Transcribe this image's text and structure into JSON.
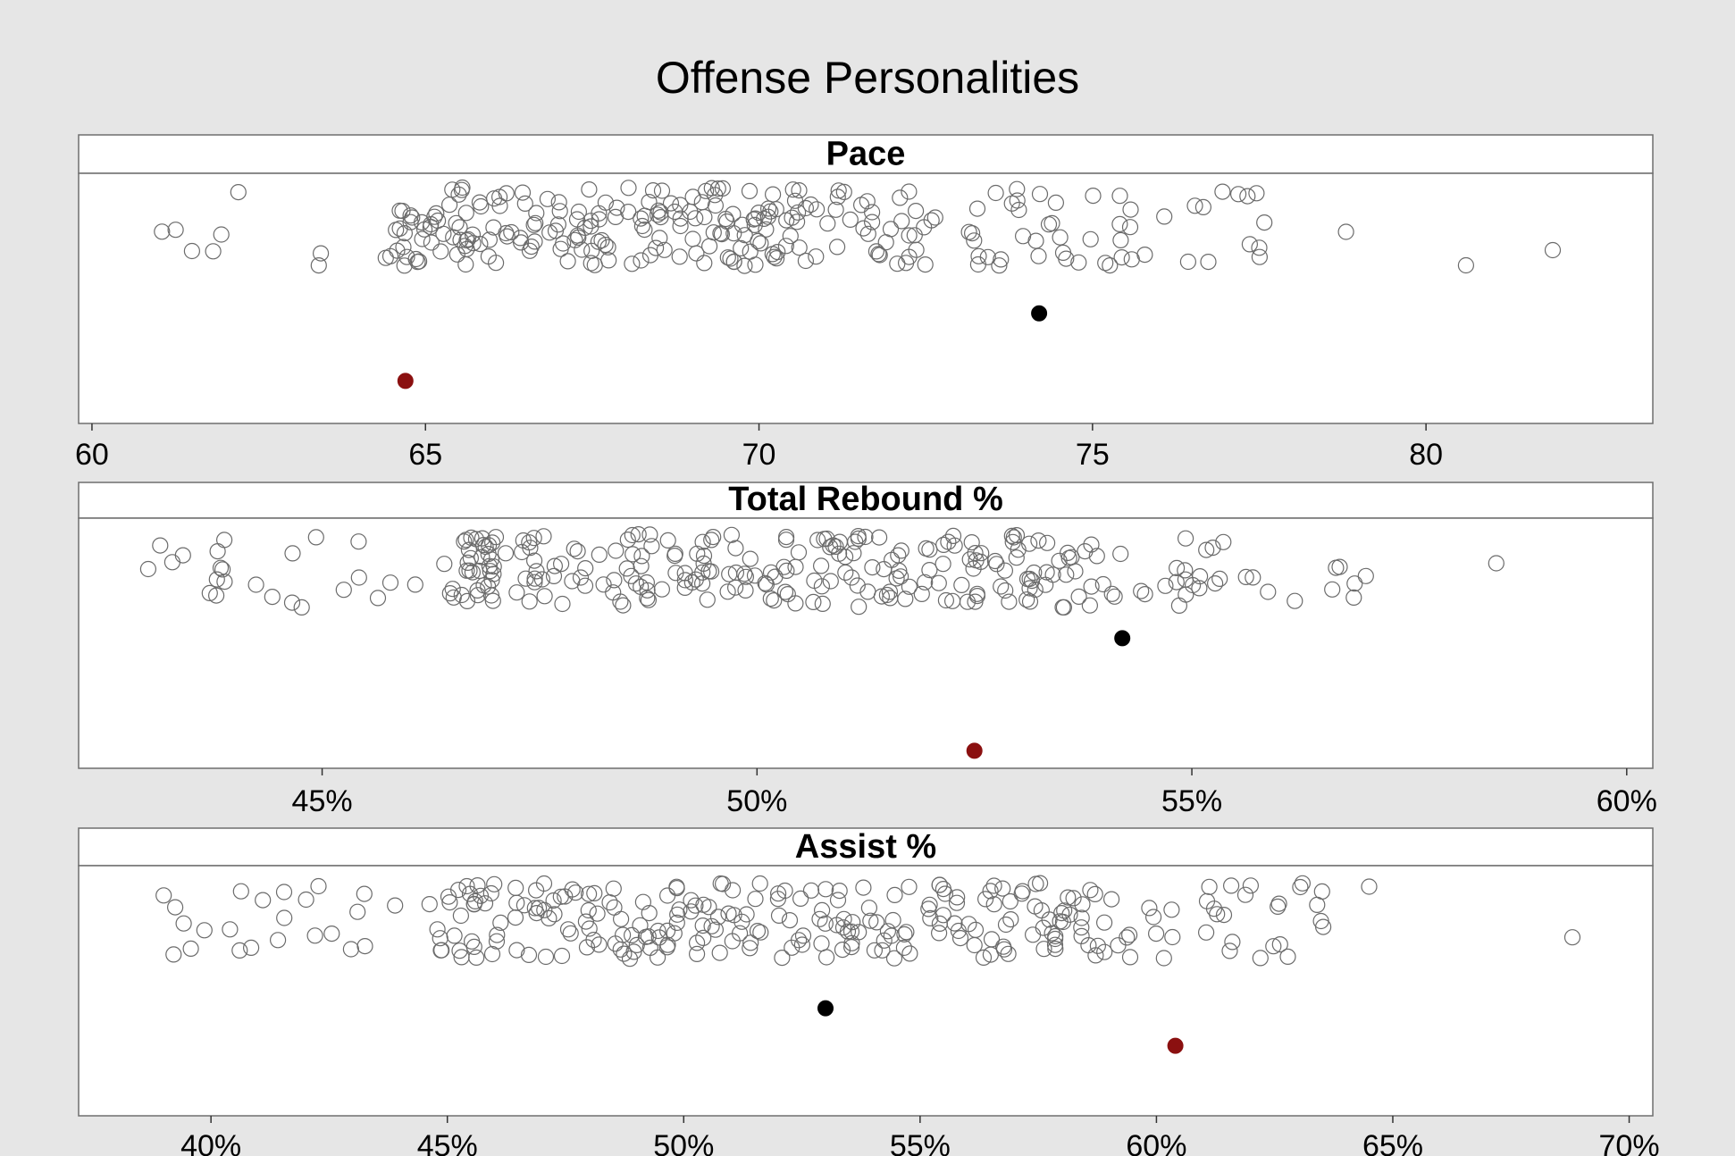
{
  "chart_data": {
    "type": "scatter",
    "title": "Offense Personalities",
    "colors": {
      "background": "#e6e6e6",
      "panel": "#ffffff",
      "points_outline": "#6b6b6b",
      "highlight_black": "#000000",
      "highlight_red": "#8b1010"
    },
    "panels": [
      {
        "id": "pace",
        "title": "Pace",
        "xlim": [
          59.8,
          83.4
        ],
        "ticks": [
          60,
          65,
          70,
          75,
          80
        ],
        "tick_labels": [
          "60",
          "65",
          "70",
          "75",
          "80"
        ],
        "seed": 11,
        "distribution": [
          {
            "range": [
              61.0,
              64.4
            ],
            "count": 5
          },
          {
            "range": [
              64.4,
              72.4
            ],
            "count": 220
          },
          {
            "range": [
              72.4,
              75.6
            ],
            "count": 40
          },
          {
            "range": [
              75.6,
              77.6
            ],
            "count": 12
          }
        ],
        "extra_points": [
          61.05,
          61.5,
          63.4,
          78.8,
          80.6,
          81.9,
          77.5,
          76.95
        ],
        "highlight": [
          {
            "x": 74.2,
            "color": "#000000",
            "level": 0.56
          },
          {
            "x": 64.7,
            "color": "#8b1010",
            "level": 0.83
          }
        ]
      },
      {
        "id": "rebound",
        "title": "Total Rebound %",
        "xlim": [
          42.2,
          60.3
        ],
        "ticks": [
          45,
          50,
          55,
          60
        ],
        "tick_labels": [
          "45%",
          "50%",
          "55%",
          "60%"
        ],
        "seed": 23,
        "distribution": [
          {
            "range": [
              43.0,
              46.4
            ],
            "count": 22
          },
          {
            "range": [
              46.4,
              53.6
            ],
            "count": 230
          },
          {
            "range": [
              53.6,
              55.6
            ],
            "count": 30
          },
          {
            "range": [
              55.6,
              57.2
            ],
            "count": 8
          }
        ],
        "extra_points": [
          43.0,
          43.4,
          58.5,
          57.0,
          56.7
        ],
        "highlight": [
          {
            "x": 54.2,
            "color": "#000000",
            "level": 0.48
          },
          {
            "x": 52.5,
            "color": "#8b1010",
            "level": 0.93
          }
        ]
      },
      {
        "id": "assist",
        "title": "Assist %",
        "xlim": [
          37.2,
          70.5
        ],
        "ticks": [
          40,
          45,
          50,
          55,
          60,
          65,
          70
        ],
        "tick_labels": [
          "40%",
          "45%",
          "50%",
          "55%",
          "60%",
          "65%",
          "70%"
        ],
        "seed": 37,
        "distribution": [
          {
            "range": [
              39.0,
              44.6
            ],
            "count": 20
          },
          {
            "range": [
              44.6,
              58.8
            ],
            "count": 230
          },
          {
            "range": [
              58.8,
              63.6
            ],
            "count": 35
          }
        ],
        "extra_points": [
          39.0,
          42.2,
          43.1,
          64.5,
          68.8,
          63.4
        ],
        "highlight": [
          {
            "x": 53.0,
            "color": "#000000",
            "level": 0.57
          },
          {
            "x": 60.4,
            "color": "#8b1010",
            "level": 0.72
          }
        ]
      }
    ]
  }
}
